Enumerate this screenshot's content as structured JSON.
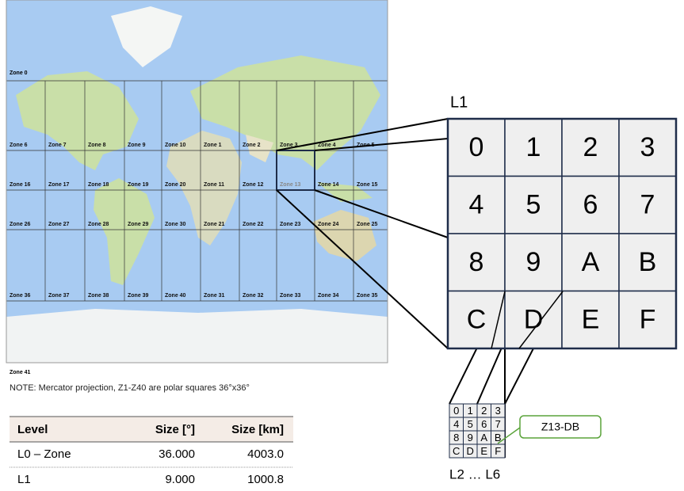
{
  "map": {
    "zone_top": "Zone 0",
    "zone_bottom": "Zone 41",
    "zone_rows": [
      [
        "Zone 6",
        "Zone 7",
        "Zone 8",
        "Zone 9",
        "Zone 10",
        "Zone 1",
        "Zone 2",
        "Zone 3",
        "Zone 4",
        "Zone 5"
      ],
      [
        "Zone 16",
        "Zone 17",
        "Zone 18",
        "Zone 19",
        "Zone 20",
        "Zone 11",
        "Zone 12",
        "Zone 13",
        "Zone 14",
        "Zone 15"
      ],
      [
        "Zone 26",
        "Zone 27",
        "Zone 28",
        "Zone 29",
        "Zone 30",
        "Zone 21",
        "Zone 22",
        "Zone 23",
        "Zone 24",
        "Zone 25"
      ],
      [
        "Zone 36",
        "Zone 37",
        "Zone 38",
        "Zone 39",
        "Zone 40",
        "Zone 31",
        "Zone 32",
        "Zone 33",
        "Zone 34",
        "Zone 35"
      ]
    ],
    "note": "NOTE: Mercator projection, Z1-Z40 are polar squares 36°x36°"
  },
  "l1": {
    "label": "L1",
    "cells": [
      "0",
      "1",
      "2",
      "3",
      "4",
      "5",
      "6",
      "7",
      "8",
      "9",
      "A",
      "B",
      "C",
      "D",
      "E",
      "F"
    ]
  },
  "sub": {
    "label": "L2 … L6",
    "callout": "Z13-DB",
    "cells": [
      "0",
      "1",
      "2",
      "3",
      "4",
      "5",
      "6",
      "7",
      "8",
      "9",
      "A",
      "B",
      "C",
      "D",
      "E",
      "F"
    ]
  },
  "table": {
    "header": [
      "Level",
      "Size [°]",
      "Size [km]"
    ],
    "rows": [
      [
        "L0 – Zone",
        "36.000",
        "4003.0"
      ],
      [
        "L1",
        "9.000",
        "1000.8"
      ]
    ]
  }
}
